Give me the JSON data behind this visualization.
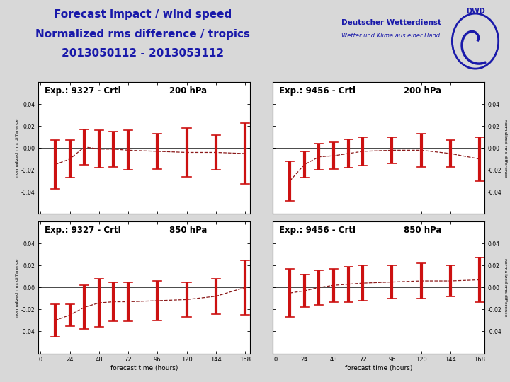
{
  "title_line1": "Forecast impact / wind speed",
  "title_line2": "Normalized rms difference / tropics",
  "title_line3": "2013050112 - 2013053112",
  "title_color": "#1a1aaa",
  "background_color": "#d8d8d8",
  "forecast_hours": [
    12,
    24,
    36,
    48,
    60,
    72,
    96,
    120,
    144,
    168
  ],
  "subplot_configs": [
    {
      "label": "Exp.: 9327 - Crtl",
      "pressure": "200 hPa",
      "mean_values": [
        -0.015,
        -0.01,
        0.001,
        -0.001,
        -0.001,
        -0.002,
        -0.003,
        -0.004,
        -0.004,
        -0.005
      ],
      "error_values": [
        0.022,
        0.017,
        0.016,
        0.017,
        0.016,
        0.018,
        0.016,
        0.022,
        0.016,
        0.028
      ],
      "ylim": [
        -0.06,
        0.06
      ],
      "yticks": [
        -0.04,
        -0.02,
        0.0,
        0.02,
        0.04
      ]
    },
    {
      "label": "Exp.: 9456 - Crtl",
      "pressure": "200 hPa",
      "mean_values": [
        -0.03,
        -0.015,
        -0.008,
        -0.007,
        -0.005,
        -0.003,
        -0.002,
        -0.002,
        -0.005,
        -0.01
      ],
      "error_values": [
        0.018,
        0.012,
        0.012,
        0.012,
        0.013,
        0.013,
        0.012,
        0.015,
        0.012,
        0.02
      ],
      "ylim": [
        -0.06,
        0.06
      ],
      "yticks": [
        -0.04,
        -0.02,
        0.0,
        0.02,
        0.04
      ]
    },
    {
      "label": "Exp.: 9327 - Crtl",
      "pressure": "850 hPa",
      "mean_values": [
        -0.03,
        -0.025,
        -0.018,
        -0.014,
        -0.013,
        -0.013,
        -0.012,
        -0.011,
        -0.008,
        0.0
      ],
      "error_values": [
        0.015,
        0.01,
        0.02,
        0.022,
        0.018,
        0.018,
        0.018,
        0.016,
        0.016,
        0.025
      ],
      "ylim": [
        -0.06,
        0.06
      ],
      "yticks": [
        -0.04,
        -0.02,
        0.0,
        0.02,
        0.04
      ]
    },
    {
      "label": "Exp.: 9456 - Crtl",
      "pressure": "850 hPa",
      "mean_values": [
        -0.005,
        -0.003,
        0.0,
        0.002,
        0.003,
        0.004,
        0.005,
        0.006,
        0.006,
        0.007
      ],
      "error_values": [
        0.022,
        0.015,
        0.016,
        0.015,
        0.016,
        0.016,
        0.015,
        0.016,
        0.014,
        0.02
      ],
      "ylim": [
        -0.06,
        0.06
      ],
      "yticks": [
        -0.04,
        -0.02,
        0.0,
        0.02,
        0.04
      ]
    }
  ],
  "line_color": "#8b1a1a",
  "bar_color": "#cc1111",
  "bar_width": 3.0,
  "ylabel": "normalized rms difference",
  "xlabel": "forecast time (hours)",
  "xticks": [
    0,
    24,
    48,
    72,
    96,
    120,
    144,
    168
  ],
  "xtick_labels": [
    "0",
    "24",
    "48",
    "72",
    "96",
    "120",
    "144",
    "168"
  ],
  "sep_color": "#1a1aaa"
}
